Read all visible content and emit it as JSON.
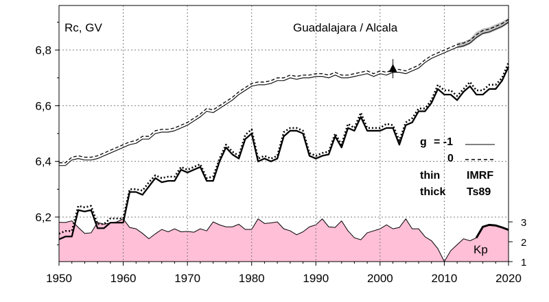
{
  "chart_data": {
    "type": "line",
    "title": "Guadalajara / Alcala",
    "ylabel": "Rc, GV",
    "xlim": [
      1950,
      2020
    ],
    "ylim": [
      6.04,
      6.96
    ],
    "grid": true,
    "x_ticks": [
      1950,
      1960,
      1970,
      1980,
      1990,
      2000,
      2010,
      2020
    ],
    "x_tick_labels": [
      "1950",
      "1960",
      "1970",
      "1980",
      "1990",
      "2000",
      "2010",
      "2020"
    ],
    "y_ticks": [
      6.2,
      6.4,
      6.6,
      6.8
    ],
    "y_tick_labels": [
      "6,2",
      "6,4",
      "6,6",
      "6,8"
    ],
    "legend": {
      "g_label": "g",
      "g_minus1": "= -1",
      "g_zero": "0",
      "thin_label": "thin",
      "thin_model": "IMRF",
      "thick_label": "thick",
      "thick_model": "Ts89"
    },
    "marker": {
      "x": 2002,
      "y": 6.733,
      "symbol": "triangle"
    },
    "series": [
      {
        "line": "thin-solid",
        "x": [
          1950,
          1951,
          1952,
          1953,
          1954,
          1955,
          1956,
          1957,
          1958,
          1959,
          1960,
          1961,
          1962,
          1963,
          1964,
          1965,
          1966,
          1967,
          1968,
          1969,
          1970,
          1971,
          1972,
          1973,
          1974,
          1975,
          1976,
          1977,
          1978,
          1979,
          1980,
          1981,
          1982,
          1983,
          1984,
          1985,
          1986,
          1987,
          1988,
          1989,
          1990,
          1991,
          1992,
          1993,
          1994,
          1995,
          1996,
          1997,
          1998,
          1999,
          2000,
          2001,
          2002,
          2003,
          2004,
          2005,
          2006,
          2007,
          2008,
          2009,
          2010,
          2011,
          2012,
          2013,
          2014,
          2015,
          2016,
          2017,
          2018,
          2019,
          2020
        ],
        "values": [
          6.385,
          6.385,
          6.405,
          6.41,
          6.405,
          6.405,
          6.41,
          6.42,
          6.43,
          6.44,
          6.45,
          6.46,
          6.465,
          6.48,
          6.48,
          6.5,
          6.505,
          6.505,
          6.51,
          6.52,
          6.53,
          6.545,
          6.56,
          6.58,
          6.575,
          6.59,
          6.605,
          6.62,
          6.64,
          6.655,
          6.67,
          6.675,
          6.675,
          6.68,
          6.69,
          6.69,
          6.7,
          6.695,
          6.7,
          6.7,
          6.705,
          6.705,
          6.7,
          6.71,
          6.7,
          6.7,
          6.705,
          6.71,
          6.715,
          6.705,
          6.715,
          6.71,
          6.72,
          6.72,
          6.715,
          6.725,
          6.735,
          6.755,
          6.77,
          6.78,
          6.79,
          6.8,
          6.81,
          6.815,
          6.825,
          6.845,
          6.86,
          6.865,
          6.875,
          6.885,
          6.9
        ]
      },
      {
        "line": "thin-dashed",
        "x": [
          1950,
          1951,
          1952,
          1953,
          1954,
          1955,
          1956,
          1957,
          1958,
          1959,
          1960,
          1961,
          1962,
          1963,
          1964,
          1965,
          1966,
          1967,
          1968,
          1969,
          1970,
          1971,
          1972,
          1973,
          1974,
          1975,
          1976,
          1977,
          1978,
          1979,
          1980,
          1981,
          1982,
          1983,
          1984,
          1985,
          1986,
          1987,
          1988,
          1989,
          1990,
          1991,
          1992,
          1993,
          1994,
          1995,
          1996,
          1997,
          1998,
          1999,
          2000,
          2001,
          2002,
          2003,
          2004,
          2005,
          2006,
          2007,
          2008,
          2009,
          2010,
          2011,
          2012,
          2013,
          2014,
          2015,
          2016,
          2017,
          2018,
          2019,
          2020
        ],
        "values": [
          6.395,
          6.395,
          6.415,
          6.42,
          6.415,
          6.415,
          6.42,
          6.43,
          6.44,
          6.45,
          6.46,
          6.47,
          6.475,
          6.49,
          6.49,
          6.51,
          6.515,
          6.515,
          6.52,
          6.53,
          6.54,
          6.555,
          6.57,
          6.59,
          6.585,
          6.6,
          6.615,
          6.63,
          6.65,
          6.665,
          6.68,
          6.685,
          6.685,
          6.69,
          6.7,
          6.7,
          6.71,
          6.705,
          6.71,
          6.71,
          6.715,
          6.715,
          6.71,
          6.72,
          6.71,
          6.71,
          6.715,
          6.72,
          6.725,
          6.715,
          6.725,
          6.72,
          6.73,
          6.73,
          6.725,
          6.735,
          6.745,
          6.765,
          6.78,
          6.79,
          6.8,
          6.81,
          6.82,
          6.825,
          6.835,
          6.855,
          6.87,
          6.875,
          6.885,
          6.895,
          6.91
        ]
      },
      {
        "line": "thick-solid",
        "x": [
          1950,
          1951,
          1952,
          1953,
          1954,
          1955,
          1956,
          1957,
          1958,
          1959,
          1960,
          1961,
          1962,
          1963,
          1964,
          1965,
          1966,
          1967,
          1968,
          1969,
          1970,
          1971,
          1972,
          1973,
          1974,
          1975,
          1976,
          1977,
          1978,
          1979,
          1980,
          1981,
          1982,
          1983,
          1984,
          1985,
          1986,
          1987,
          1988,
          1989,
          1990,
          1991,
          1992,
          1993,
          1994,
          1995,
          1996,
          1997,
          1998,
          1999,
          2000,
          2001,
          2002,
          2003,
          2004,
          2005,
          2006,
          2007,
          2008,
          2009,
          2010,
          2011,
          2012,
          2013,
          2014,
          2015,
          2016,
          2017,
          2018,
          2019,
          2020
        ],
        "values": [
          6.12,
          6.13,
          6.13,
          6.225,
          6.22,
          6.225,
          6.16,
          6.16,
          6.18,
          6.18,
          6.18,
          6.29,
          6.29,
          6.28,
          6.31,
          6.34,
          6.325,
          6.33,
          6.33,
          6.37,
          6.36,
          6.37,
          6.38,
          6.33,
          6.33,
          6.4,
          6.45,
          6.425,
          6.41,
          6.48,
          6.5,
          6.4,
          6.41,
          6.4,
          6.41,
          6.49,
          6.51,
          6.51,
          6.5,
          6.42,
          6.41,
          6.42,
          6.425,
          6.49,
          6.45,
          6.52,
          6.51,
          6.56,
          6.51,
          6.51,
          6.51,
          6.52,
          6.52,
          6.46,
          6.53,
          6.54,
          6.58,
          6.58,
          6.61,
          6.66,
          6.64,
          6.64,
          6.62,
          6.65,
          6.67,
          6.64,
          6.64,
          6.66,
          6.66,
          6.69,
          6.74
        ]
      },
      {
        "line": "thick-dotted",
        "x": [
          1950,
          1951,
          1952,
          1953,
          1954,
          1955,
          1956,
          1957,
          1958,
          1959,
          1960,
          1961,
          1962,
          1963,
          1964,
          1965,
          1966,
          1967,
          1968,
          1969,
          1970,
          1971,
          1972,
          1973,
          1974,
          1975,
          1976,
          1977,
          1978,
          1979,
          1980,
          1981,
          1982,
          1983,
          1984,
          1985,
          1986,
          1987,
          1988,
          1989,
          1990,
          1991,
          1992,
          1993,
          1994,
          1995,
          1996,
          1997,
          1998,
          1999,
          2000,
          2001,
          2002,
          2003,
          2004,
          2005,
          2006,
          2007,
          2008,
          2009,
          2010,
          2011,
          2012,
          2013,
          2014,
          2015,
          2016,
          2017,
          2018,
          2019,
          2020
        ],
        "values": [
          6.14,
          6.15,
          6.15,
          6.24,
          6.235,
          6.24,
          6.175,
          6.175,
          6.195,
          6.195,
          6.195,
          6.3,
          6.3,
          6.295,
          6.325,
          6.35,
          6.34,
          6.345,
          6.345,
          6.38,
          6.37,
          6.38,
          6.39,
          6.34,
          6.345,
          6.41,
          6.46,
          6.435,
          6.42,
          6.495,
          6.515,
          6.41,
          6.42,
          6.41,
          6.42,
          6.505,
          6.52,
          6.52,
          6.51,
          6.43,
          6.42,
          6.43,
          6.435,
          6.5,
          6.46,
          6.535,
          6.52,
          6.575,
          6.52,
          6.52,
          6.52,
          6.535,
          6.53,
          6.475,
          6.54,
          6.555,
          6.59,
          6.59,
          6.62,
          6.675,
          6.655,
          6.655,
          6.635,
          6.66,
          6.685,
          6.655,
          6.655,
          6.675,
          6.675,
          6.7,
          6.755
        ]
      },
      {
        "line": "kp-area",
        "kp_range": [
          1,
          3
        ],
        "kp_ticks": [
          1,
          2,
          3
        ],
        "kp_tick_labels": [
          "1",
          "2",
          "3"
        ],
        "name": "Kp",
        "color": "#ffbfd6",
        "x": [
          1950,
          1951,
          1952,
          1953,
          1954,
          1955,
          1956,
          1957,
          1958,
          1959,
          1960,
          1961,
          1962,
          1963,
          1964,
          1965,
          1966,
          1967,
          1968,
          1969,
          1970,
          1971,
          1972,
          1973,
          1974,
          1975,
          1976,
          1977,
          1978,
          1979,
          1980,
          1981,
          1982,
          1983,
          1984,
          1985,
          1986,
          1987,
          1988,
          1989,
          1990,
          1991,
          1992,
          1993,
          1994,
          1995,
          1996,
          1997,
          1998,
          1999,
          2000,
          2001,
          2002,
          2003,
          2004,
          2005,
          2006,
          2007,
          2008,
          2009,
          2010,
          2011,
          2012,
          2013,
          2014,
          2015,
          2016,
          2017,
          2018,
          2019,
          2020
        ],
        "values": [
          2.98,
          2.97,
          3.05,
          2.72,
          2.42,
          2.45,
          2.97,
          2.88,
          2.95,
          3.0,
          3.15,
          2.72,
          2.65,
          2.42,
          2.15,
          2.4,
          2.62,
          2.5,
          2.65,
          2.5,
          2.52,
          2.48,
          2.65,
          2.55,
          3.0,
          2.85,
          2.75,
          2.75,
          2.88,
          2.62,
          2.62,
          3.15,
          2.92,
          2.95,
          3.0,
          2.65,
          2.55,
          2.35,
          2.5,
          2.75,
          2.85,
          3.15,
          2.75,
          2.72,
          3.05,
          2.55,
          2.2,
          2.1,
          2.45,
          2.55,
          2.65,
          2.85,
          2.65,
          2.72,
          3.15,
          2.65,
          2.65,
          2.25,
          2.05,
          1.65,
          1.0,
          1.55,
          1.85,
          2.15,
          2.05,
          2.2,
          2.75,
          2.85,
          2.82,
          2.72,
          2.6
        ]
      }
    ],
    "band": {
      "x": [
        2012,
        2013,
        2014,
        2015,
        2016,
        2017,
        2018,
        2019,
        2020
      ],
      "lower": [
        6.806,
        6.81,
        6.82,
        6.84,
        6.855,
        6.86,
        6.87,
        6.88,
        6.895
      ],
      "upper": [
        6.826,
        6.83,
        6.84,
        6.865,
        6.877,
        6.882,
        6.892,
        6.902,
        6.915
      ],
      "color": "#c0c0c0"
    },
    "kp_label": "Kp"
  }
}
